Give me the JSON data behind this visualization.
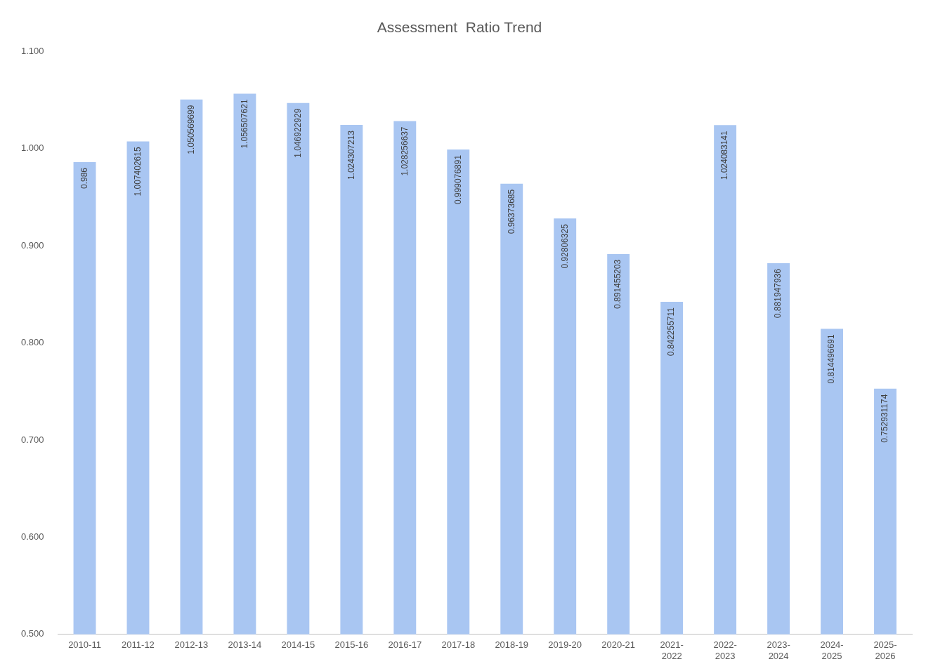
{
  "chart_data": {
    "type": "bar",
    "title": "Assessment  Ratio Trend",
    "categories": [
      "2010-11",
      "2011-12",
      "2012-13",
      "2013-14",
      "2014-15",
      "2015-16",
      "2016-17",
      "2017-18",
      "2018-19",
      "2019-20",
      "2020-21",
      "2021-2022",
      "2022-2023",
      "2023-2024",
      "2024-2025",
      "2025-2026"
    ],
    "series": [
      {
        "color": "#a9c6f2",
        "values": [
          0.986,
          1.007402615,
          1.050569699,
          1.056507621,
          1.046922929,
          1.024307213,
          1.028256637,
          0.999076891,
          0.96373685,
          0.92806325,
          0.891455203,
          0.842255711,
          1.024083141,
          0.881947936,
          0.814496691,
          0.752931174
        ]
      }
    ],
    "ylim": [
      0.5,
      1.1
    ],
    "yticks": [
      {
        "value": 0.5,
        "label": "0.500"
      },
      {
        "value": 0.6,
        "label": "0.600"
      },
      {
        "value": 0.7,
        "label": "0.700"
      },
      {
        "value": 0.8,
        "label": "0.800"
      },
      {
        "value": 0.9,
        "label": "0.900"
      },
      {
        "value": 1.0,
        "label": "1.000"
      },
      {
        "value": 1.1,
        "label": "1.100"
      }
    ],
    "grid": false,
    "legend": false,
    "data_labels": true
  }
}
